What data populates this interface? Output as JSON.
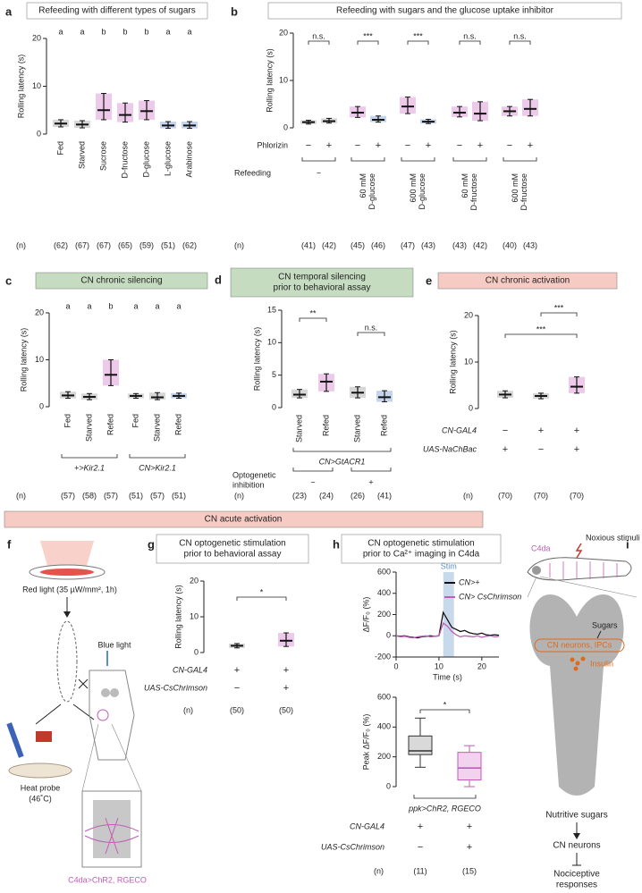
{
  "chart_data": [
    {
      "type": "strip",
      "panel": "a",
      "title": "Refeeding with different types of sugars",
      "ylabel": "Rolling latency (s)",
      "ylim": [
        0,
        20
      ],
      "yticks": [
        0,
        10,
        20
      ],
      "categories": [
        "Fed",
        "Starved",
        "Sucrose",
        "D-fructose",
        "D-glucose",
        "L-glucose",
        "Arabinose"
      ],
      "values": [
        2.2,
        2,
        5,
        4,
        4.8,
        1.8,
        1.8
      ],
      "q1": [
        1.5,
        1.3,
        3,
        2.5,
        3,
        1.2,
        1.2
      ],
      "q3": [
        3,
        2.8,
        8.5,
        6.5,
        7,
        2.6,
        2.6
      ],
      "colors": [
        "#a6a6a6",
        "#a6a6a6",
        "#d98ad0",
        "#d98ad0",
        "#d98ad0",
        "#7f9fd6",
        "#7f9fd6"
      ],
      "letters": [
        "a",
        "a",
        "b",
        "b",
        "b",
        "a",
        "a"
      ],
      "n_label": "(n)",
      "n": [
        "(62)",
        "(67)",
        "(67)",
        "(65)",
        "(59)",
        "(51)",
        "(62)"
      ]
    },
    {
      "type": "strip",
      "panel": "b",
      "title": "Refeeding with sugars and the glucose uptake inhibitor",
      "ylabel": "Rolling latency (s)",
      "ylim": [
        0,
        20
      ],
      "yticks": [
        0,
        10,
        20
      ],
      "values": [
        1.2,
        1.4,
        3.2,
        1.7,
        4.5,
        1.3,
        3.2,
        3,
        3.5,
        4
      ],
      "q1": [
        0.8,
        1,
        2.2,
        1.2,
        3,
        0.9,
        2.3,
        1.5,
        2.5,
        2.5
      ],
      "q3": [
        1.6,
        2,
        4.5,
        2.5,
        6.5,
        1.8,
        4.5,
        5.5,
        4.5,
        6
      ],
      "colors": [
        "#a6a6a6",
        "#a6a6a6",
        "#d98ad0",
        "#7f9fd6",
        "#d98ad0",
        "#7f9fd6",
        "#d98ad0",
        "#d98ad0",
        "#d98ad0",
        "#d98ad0"
      ],
      "significance": [
        "n.s.",
        "***",
        "***",
        "n.s.",
        "n.s."
      ],
      "rows": [
        {
          "label": "Phlorizin",
          "values": [
            "−",
            "+",
            "−",
            "+",
            "−",
            "+",
            "−",
            "+",
            "−",
            "+"
          ]
        }
      ],
      "groups": [
        {
          "label": "Refeeding",
          "values": [
            "−",
            [
              "60 mM",
              "D-glucose"
            ],
            [
              "600 mM",
              "D-glucose"
            ],
            [
              "60 mM",
              "D-fructose"
            ],
            [
              "600 mM",
              "D-fructose"
            ]
          ]
        }
      ],
      "n_label": "(n)",
      "n": [
        "(41)",
        "(42)",
        "(45)",
        "(46)",
        "(47)",
        "(43)",
        "(43)",
        "(42)",
        "(40)",
        "(43)"
      ]
    },
    {
      "type": "strip",
      "panel": "c",
      "title": "CN chronic silencing",
      "ylabel": "Rolling latency (s)",
      "ylim": [
        0,
        20
      ],
      "yticks": [
        0,
        10,
        20
      ],
      "categories": [
        "Fed",
        "Starved",
        "Refed",
        "Fed",
        "Starved",
        "Refed"
      ],
      "values": [
        2.4,
        2.1,
        6.8,
        2.3,
        2,
        2.3
      ],
      "q1": [
        1.8,
        1.5,
        4.5,
        1.8,
        1.5,
        1.8
      ],
      "q3": [
        3.2,
        2.8,
        10,
        2.8,
        3,
        2.9
      ],
      "colors": [
        "#a6a6a6",
        "#a6a6a6",
        "#d98ad0",
        "#a6a6a6",
        "#a6a6a6",
        "#7f9fd6"
      ],
      "letters": [
        "a",
        "a",
        "b",
        "a",
        "a",
        "a"
      ],
      "groups": [
        {
          "values": [
            "+>Kir2.1",
            "CN>Kir2.1"
          ]
        }
      ],
      "n_label": "(n)",
      "n": [
        "(57)",
        "(58)",
        "(57)",
        "(51)",
        "(57)",
        "(51)"
      ]
    },
    {
      "type": "strip",
      "panel": "d",
      "title": [
        "CN temporal silencing",
        "prior to behavioral assay"
      ],
      "ylabel": "Rolling latency (s)",
      "ylim": [
        0,
        15
      ],
      "yticks": [
        0,
        5,
        10,
        15
      ],
      "categories": [
        "Starved",
        "Refed",
        "Starved",
        "Refed"
      ],
      "values": [
        2,
        4,
        2.3,
        1.6
      ],
      "q1": [
        1.5,
        2.5,
        1.5,
        0.9
      ],
      "q3": [
        2.8,
        5.2,
        3.2,
        2.6
      ],
      "colors": [
        "#a6a6a6",
        "#d98ad0",
        "#a6a6a6",
        "#7f9fd6"
      ],
      "significance": [
        "**",
        "n.s."
      ],
      "groups": [
        {
          "values": [
            "CN>GtACR1"
          ]
        },
        {
          "label": [
            "Optogenetic",
            "inhibition"
          ],
          "values": [
            "−",
            "+"
          ]
        }
      ],
      "n_label": "(n)",
      "n": [
        "(23)",
        "(24)",
        "(26)",
        "(41)"
      ]
    },
    {
      "type": "strip",
      "panel": "e",
      "title": "CN chronic activation",
      "ylabel": "Rolling latency (s)",
      "ylim": [
        0,
        20
      ],
      "yticks": [
        0,
        10,
        20
      ],
      "values": [
        3,
        2.7,
        4.7
      ],
      "q1": [
        2.3,
        2.1,
        3.3
      ],
      "q3": [
        3.8,
        3.3,
        6.8
      ],
      "colors": [
        "#a6a6a6",
        "#a6a6a6",
        "#d98ad0"
      ],
      "significance": [
        "***",
        "***"
      ],
      "rows": [
        {
          "label": "CN-GAL4",
          "values": [
            "−",
            "+",
            "+"
          ]
        },
        {
          "label": "UAS-NaChBac",
          "values": [
            "+",
            "−",
            "+"
          ]
        }
      ],
      "n_label": "(n)",
      "n": [
        "(70)",
        "(70)",
        "(70)"
      ]
    },
    {
      "type": "strip",
      "panel": "g",
      "title": [
        "CN optogenetic stimulation",
        "prior to behavioral assay"
      ],
      "ylabel": "Rolling latency (s)",
      "ylim": [
        0,
        20
      ],
      "yticks": [
        0,
        10,
        20
      ],
      "values": [
        1.9,
        3.3
      ],
      "q1": [
        1.3,
        1.7
      ],
      "q3": [
        2.5,
        5.5
      ],
      "colors": [
        "#a6a6a6",
        "#d98ad0"
      ],
      "significance": [
        "*"
      ],
      "rows": [
        {
          "label": "CN-GAL4",
          "values": [
            "+",
            "+"
          ]
        },
        {
          "label": "UAS-CsChrimson",
          "values": [
            "−",
            "+"
          ]
        }
      ],
      "n_label": "(n)",
      "n": [
        "(50)",
        "(50)"
      ]
    },
    {
      "type": "line",
      "panel": "h",
      "title": [
        "CN optogenetic stimulation",
        "prior to Ca²⁺ imaging in C4da"
      ],
      "ylabel": "ΔF/F₀ (%)",
      "xlabel": "Time (s)",
      "xlim": [
        0,
        24
      ],
      "xticks": [
        0,
        10,
        20
      ],
      "ylim": [
        -200,
        600
      ],
      "yticks": [
        -200,
        0,
        200,
        400,
        600
      ],
      "stim_label": "Stim",
      "stim": [
        11,
        13.5
      ],
      "stim_color": "#c9d9ec",
      "x": [
        0,
        1,
        2,
        3,
        4,
        5,
        6,
        7,
        8,
        9,
        10,
        11,
        12,
        13,
        14,
        15,
        16,
        17,
        18,
        19,
        20,
        21,
        22,
        23,
        24
      ],
      "series": [
        {
          "name": "CN>+",
          "color": "#111111",
          "values": [
            0,
            -5,
            0,
            -10,
            -15,
            -20,
            -10,
            -5,
            0,
            -5,
            0,
            220,
            150,
            80,
            60,
            40,
            50,
            30,
            20,
            15,
            25,
            10,
            5,
            10,
            5
          ]
        },
        {
          "name": "CN> CsChrimson",
          "color": "#c25cb8",
          "values": [
            0,
            -10,
            -5,
            -15,
            -20,
            -10,
            -5,
            0,
            -10,
            -5,
            0,
            120,
            90,
            40,
            10,
            -10,
            0,
            -5,
            -10,
            0,
            -15,
            -5,
            0,
            -10,
            -5
          ]
        }
      ]
    },
    {
      "type": "box",
      "ylabel": "Peak ΔF/F₀ (%)",
      "ylim": [
        0,
        600
      ],
      "yticks": [
        0,
        200,
        400,
        600
      ],
      "boxes": [
        {
          "min": 130,
          "q1": 215,
          "median": 240,
          "q3": 340,
          "max": 460,
          "color": "#d9d9d9",
          "edge": "#333333"
        },
        {
          "min": 0,
          "q1": 45,
          "median": 125,
          "q3": 230,
          "max": 275,
          "color": "#f2d3ee",
          "edge": "#c25cb8"
        }
      ],
      "significance": [
        "*"
      ],
      "groups": [
        {
          "values": [
            "ppk>ChR2, RGECO"
          ]
        }
      ],
      "rows": [
        {
          "label": "CN-GAL4",
          "values": [
            "+",
            "+"
          ]
        },
        {
          "label": "UAS-CsChrimson",
          "values": [
            "−",
            "+"
          ]
        }
      ],
      "n_label": "(n)",
      "n": [
        "(11)",
        "(15)"
      ]
    }
  ],
  "banner": "CN acute activation",
  "panel_f": {
    "panel": "f",
    "red_light": "Red light (35 µW/mm², 1h)",
    "blue_light": "Blue light",
    "heat_probe": [
      "Heat probe",
      "(46˚C)"
    ],
    "genotype": "C4da>ChR2, RGECO"
  },
  "panel_i": {
    "panel": "i",
    "c4da": "C4da",
    "noxious": "Noxious stimuli",
    "sugars": "Sugars",
    "cn_ipcs": "CN neurons, IPCs",
    "insulin": "Insulin",
    "nutritive": "Nutritive sugars",
    "cn": "CN neurons",
    "nociceptive": [
      "Nociceptive",
      "responses"
    ]
  }
}
